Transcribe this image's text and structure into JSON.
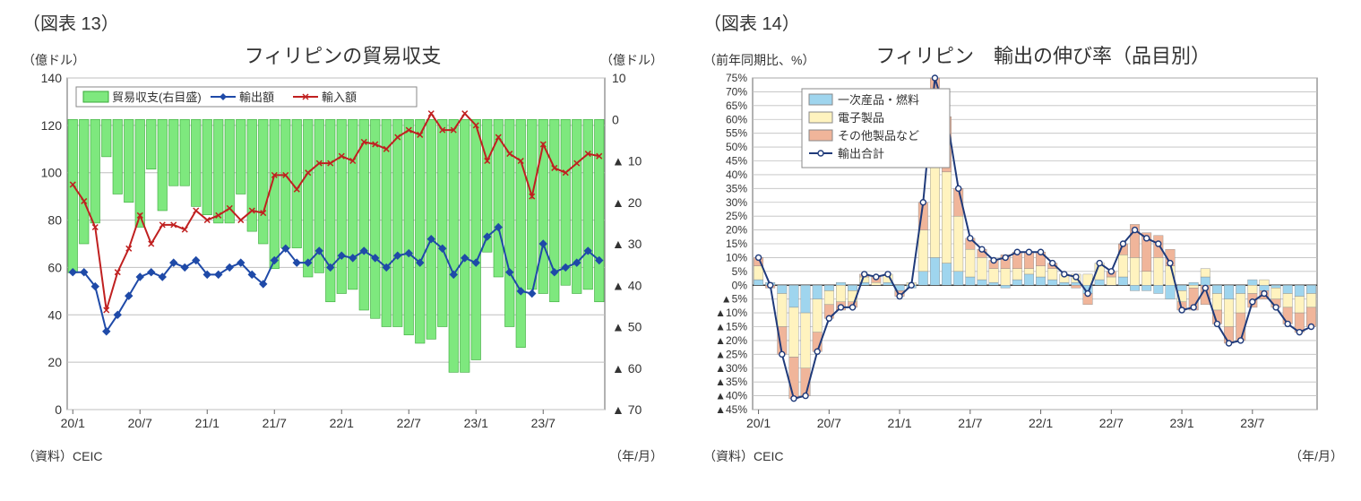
{
  "chart13": {
    "fig_label": "（図表 13）",
    "title": "フィリピンの貿易収支",
    "y_left_unit": "（億ドル）",
    "y_right_unit": "（億ドル）",
    "x_unit": "（年/月）",
    "source": "（資料）CEIC",
    "legend": {
      "balance": "貿易収支(右目盛)",
      "exports": "輸出額",
      "imports": "輸入額"
    },
    "colors": {
      "balance_bar": "#7ee87e",
      "balance_border": "#3aa83a",
      "exports_line": "#1f4aa8",
      "imports_line": "#c02020",
      "grid": "#bfbfbf",
      "border": "#666666",
      "background": "#ffffff"
    },
    "y_left": {
      "min": 0,
      "max": 140,
      "step": 20
    },
    "y_right": {
      "min": -70,
      "max": 10,
      "step": 10,
      "neg_prefix": "▲ "
    },
    "x_ticks": [
      "20/1",
      "20/7",
      "21/1",
      "21/7",
      "22/1",
      "22/7",
      "23/1",
      "23/7"
    ],
    "x_tick_idx": [
      0,
      6,
      12,
      18,
      24,
      30,
      36,
      42
    ],
    "n_points": 48,
    "exports": [
      58,
      58,
      52,
      33,
      40,
      48,
      56,
      58,
      56,
      62,
      60,
      63,
      57,
      57,
      60,
      62,
      57,
      53,
      63,
      68,
      62,
      62,
      67,
      60,
      65,
      64,
      67,
      64,
      60,
      65,
      66,
      62,
      72,
      68,
      57,
      64,
      62,
      73,
      77,
      58,
      50,
      49,
      70,
      58,
      60,
      62,
      67,
      63
    ],
    "imports": [
      95,
      88,
      77,
      42,
      58,
      68,
      82,
      70,
      78,
      78,
      76,
      84,
      80,
      82,
      85,
      80,
      84,
      83,
      99,
      99,
      93,
      100,
      104,
      104,
      107,
      105,
      113,
      112,
      110,
      115,
      118,
      116,
      125,
      118,
      118,
      125,
      120,
      105,
      115,
      108,
      105,
      90,
      112,
      102,
      100,
      104,
      108,
      107
    ],
    "balance": [
      -37,
      -30,
      -25,
      -9,
      -18,
      -20,
      -26,
      -12,
      -22,
      -16,
      -16,
      -21,
      -23,
      -25,
      -25,
      -18,
      -27,
      -30,
      -36,
      -31,
      -31,
      -38,
      -37,
      -44,
      -42,
      -41,
      -46,
      -48,
      -50,
      -50,
      -52,
      -54,
      -53,
      -50,
      -61,
      -61,
      -58,
      -32,
      -38,
      -50,
      -55,
      -41,
      -42,
      -44,
      -40,
      -42,
      -41,
      -44
    ],
    "line_width": 2,
    "marker_size": 3
  },
  "chart14": {
    "fig_label": "（図表 14）",
    "title": "フィリピン　輸出の伸び率（品目別）",
    "y_unit": "（前年同期比、%）",
    "x_unit": "（年/月）",
    "source": "（資料）CEIC",
    "legend": {
      "primary": "一次産品・燃料",
      "electronics": "電子製品",
      "other": "その他製品など",
      "total": "輸出合計"
    },
    "colors": {
      "primary": "#9fd5ee",
      "electronics": "#fff3bf",
      "other": "#f0b59a",
      "total_line": "#1f3a7a",
      "grid": "#bfbfbf",
      "border": "#666666",
      "background": "#ffffff",
      "bar_border": "#888888"
    },
    "y": {
      "min": -45,
      "max": 75,
      "step": 5,
      "neg_prefix": "▲"
    },
    "x_ticks": [
      "20/1",
      "20/7",
      "21/1",
      "21/7",
      "22/1",
      "22/7",
      "23/1",
      "23/7"
    ],
    "x_tick_idx": [
      0,
      6,
      12,
      18,
      24,
      30,
      36,
      42
    ],
    "n_points": 48,
    "primary": [
      2,
      1,
      -3,
      -8,
      -10,
      -5,
      -2,
      1,
      -2,
      1,
      0,
      1,
      -2,
      -1,
      5,
      10,
      8,
      5,
      3,
      2,
      1,
      -1,
      2,
      4,
      3,
      2,
      1,
      1,
      -3,
      2,
      0,
      3,
      -2,
      -2,
      -3,
      -5,
      -2,
      1,
      3,
      -3,
      -5,
      -3,
      2,
      -2,
      -1,
      -3,
      -4,
      -3
    ],
    "electronics": [
      5,
      0,
      -12,
      -18,
      -20,
      -12,
      -5,
      -6,
      -4,
      2,
      1,
      3,
      0,
      1,
      15,
      40,
      33,
      20,
      10,
      8,
      5,
      6,
      4,
      2,
      4,
      4,
      3,
      3,
      4,
      6,
      3,
      8,
      10,
      5,
      10,
      7,
      -4,
      -1,
      3,
      -6,
      -10,
      -7,
      -3,
      2,
      -4,
      -5,
      -6,
      -5
    ],
    "other": [
      3,
      -1,
      -10,
      -15,
      -10,
      -7,
      -5,
      -3,
      -2,
      1,
      2,
      0,
      -2,
      0,
      10,
      25,
      20,
      10,
      4,
      3,
      3,
      5,
      6,
      6,
      5,
      2,
      0,
      -1,
      -4,
      0,
      2,
      4,
      12,
      14,
      8,
      6,
      -3,
      -8,
      -7,
      -5,
      -6,
      -10,
      -5,
      -3,
      -3,
      -6,
      -7,
      -7
    ],
    "total": [
      10,
      0,
      -25,
      -41,
      -40,
      -24,
      -12,
      -8,
      -8,
      4,
      3,
      4,
      -4,
      0,
      30,
      75,
      61,
      35,
      17,
      13,
      9,
      10,
      12,
      12,
      12,
      8,
      4,
      3,
      -3,
      8,
      5,
      15,
      20,
      17,
      15,
      8,
      -9,
      -8,
      -1,
      -14,
      -21,
      -20,
      -6,
      -3,
      -8,
      -14,
      -17,
      -15
    ],
    "line_width": 2,
    "marker_size": 3
  }
}
